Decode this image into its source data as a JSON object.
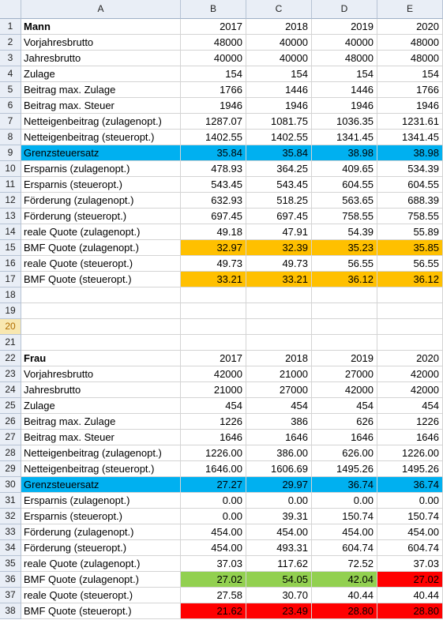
{
  "columns": [
    "A",
    "B",
    "C",
    "D",
    "E"
  ],
  "colors": {
    "blue": "#00b0f0",
    "orange": "#ffc000",
    "green": "#92d050",
    "red": "#ff0000"
  },
  "rows": [
    {
      "n": "1",
      "a": "Mann",
      "b": "2017",
      "c": "2018",
      "d": "2019",
      "e": "2020",
      "bold": true
    },
    {
      "n": "2",
      "a": "Vorjahresbrutto",
      "b": "48000",
      "c": "40000",
      "d": "40000",
      "e": "48000"
    },
    {
      "n": "3",
      "a": "Jahresbrutto",
      "b": "40000",
      "c": "40000",
      "d": "48000",
      "e": "48000"
    },
    {
      "n": "4",
      "a": "Zulage",
      "b": "154",
      "c": "154",
      "d": "154",
      "e": "154"
    },
    {
      "n": "5",
      "a": "Beitrag max. Zulage",
      "b": "1766",
      "c": "1446",
      "d": "1446",
      "e": "1766"
    },
    {
      "n": "6",
      "a": "Beitrag max. Steuer",
      "b": "1946",
      "c": "1946",
      "d": "1946",
      "e": "1946"
    },
    {
      "n": "7",
      "a": "Netteigenbeitrag (zulagenopt.)",
      "b": "1287.07",
      "c": "1081.75",
      "d": "1036.35",
      "e": "1231.61"
    },
    {
      "n": "8",
      "a": "Netteigenbeitrag (steueropt.)",
      "b": "1402.55",
      "c": "1402.55",
      "d": "1341.45",
      "e": "1341.45"
    },
    {
      "n": "9",
      "a": "Grenzsteuersatz",
      "b": "35.84",
      "c": "35.84",
      "d": "38.98",
      "e": "38.98",
      "fill": [
        "blue",
        "blue",
        "blue",
        "blue",
        "blue"
      ]
    },
    {
      "n": "10",
      "a": "Ersparnis (zulagenopt.)",
      "b": "478.93",
      "c": "364.25",
      "d": "409.65",
      "e": "534.39"
    },
    {
      "n": "11",
      "a": "Ersparnis (steueropt.)",
      "b": "543.45",
      "c": "543.45",
      "d": "604.55",
      "e": "604.55"
    },
    {
      "n": "12",
      "a": "Förderung (zulagenopt.)",
      "b": "632.93",
      "c": "518.25",
      "d": "563.65",
      "e": "688.39"
    },
    {
      "n": "13",
      "a": "Förderung (steueropt.)",
      "b": "697.45",
      "c": "697.45",
      "d": "758.55",
      "e": "758.55"
    },
    {
      "n": "14",
      "a": "reale Quote (zulagenopt.)",
      "b": "49.18",
      "c": "47.91",
      "d": "54.39",
      "e": "55.89"
    },
    {
      "n": "15",
      "a": "BMF Quote (zulagenopt.)",
      "b": "32.97",
      "c": "32.39",
      "d": "35.23",
      "e": "35.85",
      "fill": [
        "",
        "orange",
        "orange",
        "orange",
        "orange"
      ]
    },
    {
      "n": "16",
      "a": "reale Quote (steueropt.)",
      "b": "49.73",
      "c": "49.73",
      "d": "56.55",
      "e": "56.55"
    },
    {
      "n": "17",
      "a": "BMF Quote (steueropt.)",
      "b": "33.21",
      "c": "33.21",
      "d": "36.12",
      "e": "36.12",
      "fill": [
        "",
        "orange",
        "orange",
        "orange",
        "orange"
      ]
    },
    {
      "n": "18",
      "a": "",
      "b": "",
      "c": "",
      "d": "",
      "e": ""
    },
    {
      "n": "19",
      "a": "",
      "b": "",
      "c": "",
      "d": "",
      "e": ""
    },
    {
      "n": "20",
      "a": "",
      "b": "",
      "c": "",
      "d": "",
      "e": "",
      "selected": true
    },
    {
      "n": "21",
      "a": "",
      "b": "",
      "c": "",
      "d": "",
      "e": ""
    },
    {
      "n": "22",
      "a": "Frau",
      "b": "2017",
      "c": "2018",
      "d": "2019",
      "e": "2020",
      "bold": true
    },
    {
      "n": "23",
      "a": "Vorjahresbrutto",
      "b": "42000",
      "c": "21000",
      "d": "27000",
      "e": "42000"
    },
    {
      "n": "24",
      "a": "Jahresbrutto",
      "b": "21000",
      "c": "27000",
      "d": "42000",
      "e": "42000"
    },
    {
      "n": "25",
      "a": "Zulage",
      "b": "454",
      "c": "454",
      "d": "454",
      "e": "454"
    },
    {
      "n": "26",
      "a": "Beitrag max. Zulage",
      "b": "1226",
      "c": "386",
      "d": "626",
      "e": "1226"
    },
    {
      "n": "27",
      "a": "Beitrag max. Steuer",
      "b": "1646",
      "c": "1646",
      "d": "1646",
      "e": "1646"
    },
    {
      "n": "28",
      "a": "Netteigenbeitrag (zulagenopt.)",
      "b": "1226.00",
      "c": "386.00",
      "d": "626.00",
      "e": "1226.00"
    },
    {
      "n": "29",
      "a": "Netteigenbeitrag (steueropt.)",
      "b": "1646.00",
      "c": "1606.69",
      "d": "1495.26",
      "e": "1495.26"
    },
    {
      "n": "30",
      "a": "Grenzsteuersatz",
      "b": "27.27",
      "c": "29.97",
      "d": "36.74",
      "e": "36.74",
      "fill": [
        "blue",
        "blue",
        "blue",
        "blue",
        "blue"
      ]
    },
    {
      "n": "31",
      "a": "Ersparnis (zulagenopt.)",
      "b": "0.00",
      "c": "0.00",
      "d": "0.00",
      "e": "0.00"
    },
    {
      "n": "32",
      "a": "Ersparnis (steueropt.)",
      "b": "0.00",
      "c": "39.31",
      "d": "150.74",
      "e": "150.74"
    },
    {
      "n": "33",
      "a": "Förderung (zulagenopt.)",
      "b": "454.00",
      "c": "454.00",
      "d": "454.00",
      "e": "454.00"
    },
    {
      "n": "34",
      "a": "Förderung (steueropt.)",
      "b": "454.00",
      "c": "493.31",
      "d": "604.74",
      "e": "604.74"
    },
    {
      "n": "35",
      "a": "reale Quote (zulagenopt.)",
      "b": "37.03",
      "c": "117.62",
      "d": "72.52",
      "e": "37.03"
    },
    {
      "n": "36",
      "a": "BMF Quote (zulagenopt.)",
      "b": "27.02",
      "c": "54.05",
      "d": "42.04",
      "e": "27.02",
      "fill": [
        "",
        "green",
        "green",
        "green",
        "red"
      ]
    },
    {
      "n": "37",
      "a": "reale Quote (steueropt.)",
      "b": "27.58",
      "c": "30.70",
      "d": "40.44",
      "e": "40.44"
    },
    {
      "n": "38",
      "a": "BMF Quote (steueropt.)",
      "b": "21.62",
      "c": "23.49",
      "d": "28.80",
      "e": "28.80",
      "fill": [
        "",
        "red",
        "red",
        "red",
        "red"
      ]
    }
  ]
}
